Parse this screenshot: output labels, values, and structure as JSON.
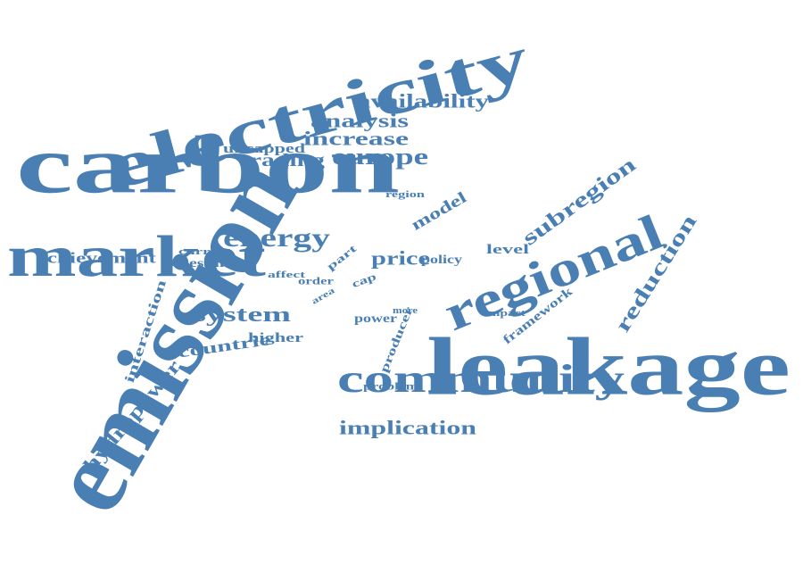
{
  "cloud": {
    "color": "#4a7fb4",
    "words": [
      {
        "key": "emission",
        "text": "emission"
      },
      {
        "key": "carbon",
        "text": "carbon"
      },
      {
        "key": "electricity",
        "text": "electricity"
      },
      {
        "key": "leakage",
        "text": "leakage"
      },
      {
        "key": "market",
        "text": "market"
      },
      {
        "key": "regional",
        "text": "regional"
      },
      {
        "key": "community",
        "text": "community"
      },
      {
        "key": "subregion",
        "text": "subregion"
      },
      {
        "key": "reduction",
        "text": "reduction"
      },
      {
        "key": "energy",
        "text": "energy"
      },
      {
        "key": "system",
        "text": "system"
      },
      {
        "key": "europe",
        "text": "europe"
      },
      {
        "key": "increase",
        "text": "increase"
      },
      {
        "key": "availability",
        "text": "availability"
      },
      {
        "key": "analysis",
        "text": "analysis"
      },
      {
        "key": "price",
        "text": "price"
      },
      {
        "key": "implication",
        "text": "implication"
      },
      {
        "key": "hydropower",
        "text": "hydropower"
      },
      {
        "key": "trading",
        "text": "trading"
      },
      {
        "key": "achievement",
        "text": "achievement"
      },
      {
        "key": "model",
        "text": "model"
      },
      {
        "key": "countrie",
        "text": "countrie"
      },
      {
        "key": "uncapped",
        "text": "uncapped"
      },
      {
        "key": "level",
        "text": "level"
      },
      {
        "key": "framework",
        "text": "framework"
      },
      {
        "key": "interaction",
        "text": "interaction"
      },
      {
        "key": "higher",
        "text": "higher"
      },
      {
        "key": "power",
        "text": "power"
      },
      {
        "key": "policy",
        "text": "policy"
      },
      {
        "key": "estimate",
        "text": "estimate"
      },
      {
        "key": "producer",
        "text": "producer"
      },
      {
        "key": "problem",
        "text": "problem"
      },
      {
        "key": "order",
        "text": "order"
      },
      {
        "key": "part",
        "text": "part"
      },
      {
        "key": "cap",
        "text": "cap"
      },
      {
        "key": "current",
        "text": "current"
      },
      {
        "key": "impact",
        "text": "impact"
      },
      {
        "key": "affect",
        "text": "affect"
      },
      {
        "key": "region",
        "text": "region"
      },
      {
        "key": "area",
        "text": "area"
      },
      {
        "key": "more",
        "text": "more"
      }
    ]
  }
}
